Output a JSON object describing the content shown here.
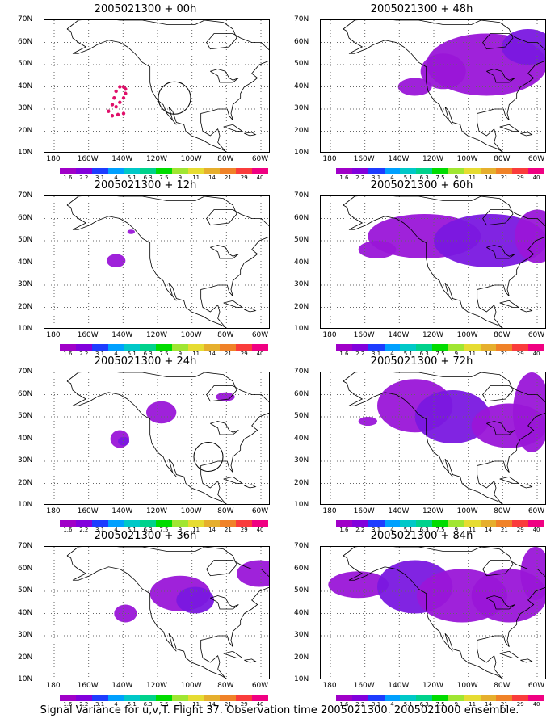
{
  "panels": [
    {
      "title": "2005021300 + 00h",
      "fc": "00h"
    },
    {
      "title": "2005021300 + 48h",
      "fc": "48h"
    },
    {
      "title": "2005021300 + 12h",
      "fc": "12h"
    },
    {
      "title": "2005021300 + 60h",
      "fc": "60h"
    },
    {
      "title": "2005021300 + 24h",
      "fc": "24h"
    },
    {
      "title": "2005021300 + 72h",
      "fc": "72h"
    },
    {
      "title": "2005021300 + 36h",
      "fc": "36h"
    },
    {
      "title": "2005021300 + 84h",
      "fc": "84h"
    }
  ],
  "lat_labels": [
    "70N",
    "60N",
    "50N",
    "40N",
    "30N",
    "20N",
    "10N"
  ],
  "lon_labels": [
    "180",
    "160W",
    "140W",
    "120W",
    "100W",
    "80W",
    "60W"
  ],
  "colorbar": {
    "labels": [
      "1.6",
      "2.2",
      "3.1",
      "4",
      "5.1",
      "6.3",
      "7.5",
      "9",
      "11",
      "14",
      "21",
      "29",
      "40"
    ],
    "colors": [
      "#a000c8",
      "#8200dc",
      "#1e3cff",
      "#00a0ff",
      "#00c8c8",
      "#00d28c",
      "#00dc00",
      "#a0e632",
      "#e6dc32",
      "#e6af2d",
      "#f08228",
      "#fa3c3c",
      "#f00082"
    ]
  },
  "footer": "Signal Variance for u,v,T. Flight 37. Observation time 2005021300. 2005021000 ensemble."
}
